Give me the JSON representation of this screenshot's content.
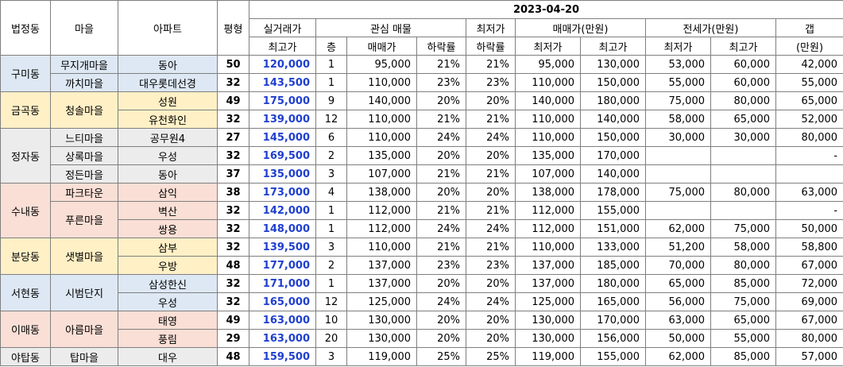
{
  "header": {
    "date": "2023-04-20",
    "dong": "법정동",
    "village": "마을",
    "apt": "아파트",
    "size": "평형",
    "real_price_top": "실거래가",
    "real_price_bottom": "최고가",
    "interest": "관심 매물",
    "floor": "층",
    "sale_price": "매매가",
    "drop_rate": "하락률",
    "low_top": "최저가",
    "low_bottom": "하락률",
    "trade_group": "매매가(만원)",
    "trade_min": "최저가",
    "trade_max": "최고가",
    "jeonse_group": "전세가(만원)",
    "jeonse_min": "최저가",
    "jeonse_max": "최고가",
    "gap_top": "갭",
    "gap_bottom": "(만원)"
  },
  "groups": [
    {
      "dong": "구미동",
      "rows": [
        {
          "village": "무지개마을",
          "apt": "동아",
          "size": "50",
          "real": "120,000",
          "floor": "1",
          "sale": "95,000",
          "rate": "21%",
          "low_rate": "21%",
          "t_min": "95,000",
          "t_max": "130,000",
          "j_min": "53,000",
          "j_max": "60,000",
          "gap": "42,000"
        },
        {
          "village": "까치마을",
          "apt": "대우롯데선경",
          "size": "32",
          "real": "143,500",
          "floor": "1",
          "sale": "110,000",
          "rate": "23%",
          "low_rate": "23%",
          "t_min": "110,000",
          "t_max": "150,000",
          "j_min": "55,000",
          "j_max": "60,000",
          "gap": "55,000"
        }
      ]
    },
    {
      "dong": "금곡동",
      "village": "청솔마을",
      "rows": [
        {
          "apt": "성원",
          "size": "49",
          "real": "175,000",
          "floor": "9",
          "sale": "140,000",
          "rate": "20%",
          "low_rate": "20%",
          "t_min": "140,000",
          "t_max": "180,000",
          "j_min": "75,000",
          "j_max": "80,000",
          "gap": "65,000"
        },
        {
          "apt": "유천화인",
          "size": "32",
          "real": "139,000",
          "floor": "12",
          "sale": "110,000",
          "rate": "21%",
          "low_rate": "21%",
          "t_min": "110,000",
          "t_max": "140,000",
          "j_min": "58,000",
          "j_max": "65,000",
          "gap": "52,000"
        }
      ]
    },
    {
      "dong": "정자동",
      "rows": [
        {
          "village": "느티마을",
          "apt": "공무원4",
          "size": "27",
          "real": "145,000",
          "floor": "6",
          "sale": "110,000",
          "rate": "24%",
          "low_rate": "24%",
          "t_min": "110,000",
          "t_max": "150,000",
          "j_min": "30,000",
          "j_max": "30,000",
          "gap": "80,000"
        },
        {
          "village": "상록마을",
          "apt": "우성",
          "size": "32",
          "real": "169,500",
          "floor": "2",
          "sale": "135,000",
          "rate": "20%",
          "low_rate": "20%",
          "t_min": "135,000",
          "t_max": "170,000",
          "j_min": "",
          "j_max": "",
          "gap": "-"
        },
        {
          "village": "정든마을",
          "apt": "동아",
          "size": "37",
          "real": "135,000",
          "floor": "3",
          "sale": "107,000",
          "rate": "21%",
          "low_rate": "21%",
          "t_min": "107,000",
          "t_max": "140,000",
          "j_min": "",
          "j_max": "",
          "gap": ""
        }
      ]
    },
    {
      "dong": "수내동",
      "rows": [
        {
          "village": "파크타운",
          "apt": "삼익",
          "size": "38",
          "real": "173,000",
          "floor": "4",
          "sale": "138,000",
          "rate": "20%",
          "low_rate": "20%",
          "t_min": "138,000",
          "t_max": "178,000",
          "j_min": "75,000",
          "j_max": "80,000",
          "gap": "63,000"
        },
        {
          "village": "푸른마을",
          "apt": "벽산",
          "size": "32",
          "real": "142,000",
          "floor": "1",
          "sale": "112,000",
          "rate": "21%",
          "low_rate": "21%",
          "t_min": "112,000",
          "t_max": "155,000",
          "j_min": "",
          "j_max": "",
          "gap": "-"
        },
        {
          "apt": "쌍용",
          "size": "32",
          "real": "148,000",
          "floor": "1",
          "sale": "112,000",
          "rate": "24%",
          "low_rate": "24%",
          "t_min": "112,000",
          "t_max": "151,000",
          "j_min": "62,000",
          "j_max": "75,000",
          "gap": "50,000"
        }
      ]
    },
    {
      "dong": "분당동",
      "village": "샛별마을",
      "rows": [
        {
          "apt": "삼부",
          "size": "32",
          "real": "139,500",
          "floor": "3",
          "sale": "110,000",
          "rate": "21%",
          "low_rate": "21%",
          "t_min": "110,000",
          "t_max": "133,000",
          "j_min": "51,200",
          "j_max": "58,000",
          "gap": "58,800"
        },
        {
          "apt": "우방",
          "size": "48",
          "real": "177,000",
          "floor": "2",
          "sale": "137,000",
          "rate": "23%",
          "low_rate": "23%",
          "t_min": "137,000",
          "t_max": "185,000",
          "j_min": "70,000",
          "j_max": "80,000",
          "gap": "67,000"
        }
      ]
    },
    {
      "dong": "서현동",
      "village": "시범단지",
      "rows": [
        {
          "apt": "삼성한신",
          "size": "32",
          "real": "171,000",
          "floor": "1",
          "sale": "137,000",
          "rate": "20%",
          "low_rate": "20%",
          "t_min": "137,000",
          "t_max": "180,000",
          "j_min": "65,000",
          "j_max": "85,000",
          "gap": "72,000"
        },
        {
          "apt": "우성",
          "size": "32",
          "real": "165,000",
          "floor": "12",
          "sale": "125,000",
          "rate": "24%",
          "low_rate": "24%",
          "t_min": "125,000",
          "t_max": "165,000",
          "j_min": "56,000",
          "j_max": "75,000",
          "gap": "69,000"
        }
      ]
    },
    {
      "dong": "이매동",
      "village": "아름마을",
      "rows": [
        {
          "apt": "태영",
          "size": "49",
          "real": "163,000",
          "floor": "10",
          "sale": "130,000",
          "rate": "20%",
          "low_rate": "20%",
          "t_min": "130,000",
          "t_max": "170,000",
          "j_min": "63,000",
          "j_max": "65,000",
          "gap": "67,000"
        },
        {
          "apt": "풍림",
          "size": "29",
          "real": "163,000",
          "floor": "20",
          "sale": "130,000",
          "rate": "20%",
          "low_rate": "20%",
          "t_min": "130,000",
          "t_max": "156,000",
          "j_min": "50,000",
          "j_max": "55,000",
          "gap": "80,000"
        }
      ]
    },
    {
      "dong": "야탑동",
      "village": "탑마을",
      "rows": [
        {
          "apt": "대우",
          "size": "48",
          "real": "159,500",
          "floor": "3",
          "sale": "119,000",
          "rate": "25%",
          "low_rate": "25%",
          "t_min": "119,000",
          "t_max": "155,000",
          "j_min": "62,000",
          "j_max": "85,000",
          "gap": "57,000"
        }
      ]
    }
  ]
}
